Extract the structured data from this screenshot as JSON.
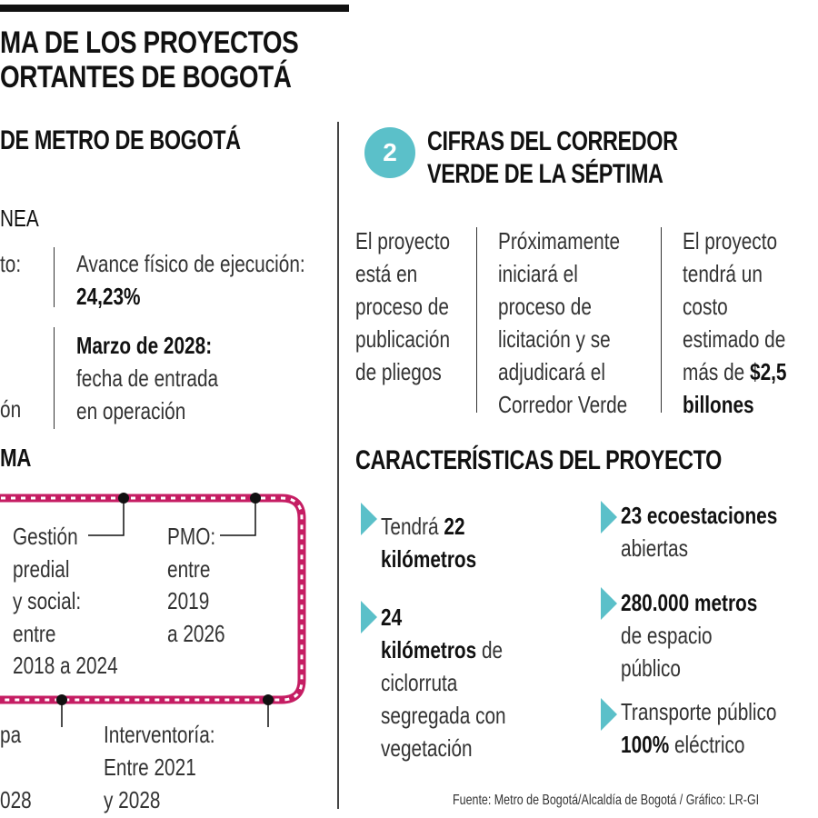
{
  "header": {
    "title_line1": "MA DE LOS PROYECTOS",
    "title_line2": "ORTANTES DE BOGOTÁ"
  },
  "left": {
    "section_title": "DE METRO DE BOGOTÁ",
    "subhead1": "NEA",
    "frag_to": "to:",
    "frag_on": "ón",
    "avance_label": "Avance físico de ejecución:",
    "avance_value": "24,23%",
    "marzo_bold": "Marzo de 2028:",
    "marzo_line1": "fecha de entrada",
    "marzo_line2": "en operación",
    "subhead2": "MA",
    "gestion": [
      "Gestión",
      "predial",
      "y social:",
      "entre",
      "2018 a 2024"
    ],
    "pmo": [
      "PMO:",
      "entre",
      "2019",
      "a 2026"
    ],
    "pa": "pa",
    "year_028": "028",
    "interventoria": [
      "Interventoría:",
      "Entre 2021",
      "y 2028"
    ]
  },
  "right": {
    "badge_number": "2",
    "section_title_line1": "CIFRAS DEL CORREDOR",
    "section_title_line2": "VERDE DE LA SÉPTIMA",
    "col1": [
      "El proyecto",
      "está en",
      "proceso de",
      "publicación",
      "de pliegos"
    ],
    "col2": [
      "Próximamente",
      "iniciará el",
      "proceso de",
      "licitación y se",
      "adjudicará el",
      "Corredor Verde"
    ],
    "col3_lines": [
      "El proyecto",
      "tendrá un",
      "costo",
      "estimado de"
    ],
    "col3_pre": "más de ",
    "col3_bold1": "$2,5",
    "col3_bold2": "billones",
    "characteristics_title": "CARACTERÍSTICAS DEL PROYECTO",
    "items": {
      "km22_pre": "Tendrá ",
      "km22_num": "22",
      "km22_bold2": "kilómetros",
      "km24_num": "24",
      "km24_bold": "kilómetros",
      "km24_rest": " de",
      "km24_l3": "ciclorruta",
      "km24_l4": "segregada con",
      "km24_l5": "vegetación",
      "eco_bold": "23 ecoestaciones",
      "eco_rest": "abiertas",
      "esp_bold": "280.000 metros",
      "esp_l2": "de espacio",
      "esp_l3": "público",
      "tra_l1": "Transporte público",
      "tra_bold": "100%",
      "tra_rest": " eléctrico"
    },
    "source": "Fuente: Metro de Bogotá/Alcaldía de Bogotá / Gráfico: LR-GI"
  },
  "colors": {
    "accent_teal": "#5bc0c9",
    "metro_magenta": "#c51d63",
    "text_dark": "#111111"
  }
}
